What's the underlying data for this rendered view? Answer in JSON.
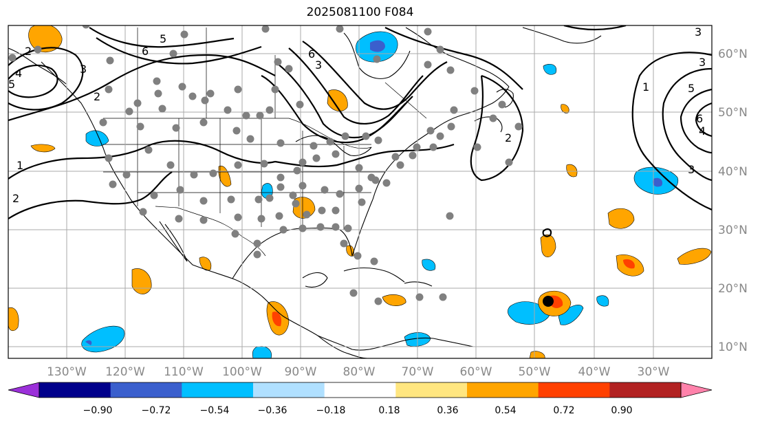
{
  "title": "2025081100 F084",
  "lat_labels": [
    "60°N",
    "50°N",
    "40°N",
    "30°N",
    "20°N",
    "10°N"
  ],
  "lon_labels": [
    "130°W",
    "120°W",
    "110°W",
    "100°W",
    "90°W",
    "80°W",
    "70°W",
    "60°W",
    "50°W",
    "40°W",
    "30°W"
  ],
  "contour_labels": [
    "5",
    "6",
    "3",
    "2",
    "4",
    "5",
    "2",
    "6",
    "3",
    "1",
    "2",
    "2",
    "3",
    "1",
    "5",
    "6",
    "4",
    "3",
    "3"
  ],
  "colorbar": {
    "ticks": [
      "−0.90",
      "−0.72",
      "−0.54",
      "−0.36",
      "−0.18",
      "0.18",
      "0.36",
      "0.54",
      "0.72",
      "0.90"
    ],
    "colors": [
      "#9b30d9",
      "#00008b",
      "#3a5fcd",
      "#00bfff",
      "#b0e0ff",
      "#ffffff",
      "#ffe680",
      "#ffa500",
      "#ff4000",
      "#b22222",
      "#ff82ab"
    ]
  },
  "colors": {
    "negative_fill": "#00bfff",
    "positive_fill": "#ffa500",
    "strong_positive": "#ff4000",
    "station_marker": "#808080",
    "storm_marker": "#000000",
    "grid": "#aaaaaa"
  }
}
